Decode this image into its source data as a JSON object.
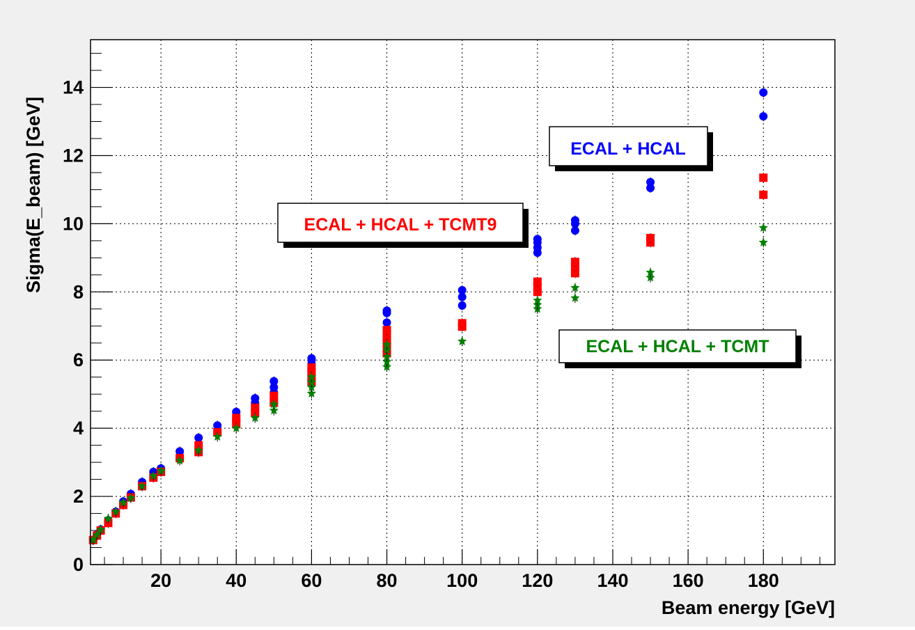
{
  "chart_data": {
    "type": "scatter",
    "title": "",
    "xlabel": "Beam energy [GeV]",
    "ylabel": "Sigma(E_beam) [GeV]",
    "xlim": [
      1.3,
      199
    ],
    "ylim": [
      0,
      15.4
    ],
    "grid": true,
    "x_ticks": [
      20,
      40,
      60,
      80,
      100,
      120,
      140,
      160,
      180
    ],
    "x_tick_labels": [
      "20",
      "40",
      "60",
      "80",
      "100",
      "120",
      "140",
      "160",
      "180"
    ],
    "y_ticks": [
      0,
      2,
      4,
      6,
      8,
      10,
      12,
      14
    ],
    "y_tick_labels": [
      "0",
      "2",
      "4",
      "6",
      "8",
      "10",
      "12",
      "14"
    ],
    "annotations": [
      {
        "text": "ECAL + HCAL",
        "color": "#0000ff"
      },
      {
        "text": "ECAL + HCAL + TCMT9",
        "color": "#ff0000"
      },
      {
        "text": "ECAL + HCAL + TCMT",
        "color": "#008000"
      }
    ],
    "series": [
      {
        "color": "#0000ff",
        "marker": "circle",
        "points": [
          [
            2,
            0.72
          ],
          [
            3,
            0.88
          ],
          [
            4,
            1.03
          ],
          [
            6,
            1.3
          ],
          [
            8,
            1.55
          ],
          [
            10,
            1.85
          ],
          [
            12,
            2.07
          ],
          [
            15,
            2.42
          ],
          [
            18,
            2.72
          ],
          [
            20,
            2.82
          ],
          [
            25,
            3.32
          ],
          [
            30,
            3.72
          ],
          [
            35,
            4.08
          ],
          [
            40,
            4.3
          ],
          [
            40,
            4.48
          ],
          [
            45,
            4.75
          ],
          [
            45,
            4.88
          ],
          [
            50,
            5.05
          ],
          [
            50,
            5.2
          ],
          [
            50,
            5.38
          ],
          [
            60,
            5.75
          ],
          [
            60,
            5.88
          ],
          [
            60,
            6.0
          ],
          [
            60,
            6.05
          ],
          [
            80,
            6.6
          ],
          [
            80,
            6.85
          ],
          [
            80,
            7.1
          ],
          [
            80,
            7.38
          ],
          [
            80,
            7.45
          ],
          [
            100,
            7.6
          ],
          [
            100,
            7.85
          ],
          [
            100,
            8.05
          ],
          [
            120,
            9.15
          ],
          [
            120,
            9.3
          ],
          [
            120,
            9.45
          ],
          [
            120,
            9.55
          ],
          [
            130,
            9.8
          ],
          [
            130,
            10.0
          ],
          [
            130,
            10.1
          ],
          [
            150,
            11.05
          ],
          [
            150,
            11.22
          ],
          [
            180,
            13.15
          ],
          [
            180,
            13.85
          ]
        ]
      },
      {
        "color": "#ff0000",
        "marker": "square",
        "points": [
          [
            2,
            0.72
          ],
          [
            3,
            0.85
          ],
          [
            4,
            1.0
          ],
          [
            6,
            1.22
          ],
          [
            8,
            1.5
          ],
          [
            10,
            1.75
          ],
          [
            12,
            1.97
          ],
          [
            15,
            2.3
          ],
          [
            18,
            2.55
          ],
          [
            20,
            2.72
          ],
          [
            25,
            3.12
          ],
          [
            30,
            3.3
          ],
          [
            30,
            3.5
          ],
          [
            35,
            3.88
          ],
          [
            40,
            4.12
          ],
          [
            40,
            4.3
          ],
          [
            45,
            4.45
          ],
          [
            45,
            4.6
          ],
          [
            50,
            4.75
          ],
          [
            50,
            4.95
          ],
          [
            60,
            5.35
          ],
          [
            60,
            5.5
          ],
          [
            60,
            5.65
          ],
          [
            60,
            5.78
          ],
          [
            80,
            6.2
          ],
          [
            80,
            6.4
          ],
          [
            80,
            6.55
          ],
          [
            80,
            6.75
          ],
          [
            80,
            6.88
          ],
          [
            100,
            6.98
          ],
          [
            100,
            7.08
          ],
          [
            120,
            8.0
          ],
          [
            120,
            8.15
          ],
          [
            120,
            8.3
          ],
          [
            130,
            8.55
          ],
          [
            130,
            8.75
          ],
          [
            130,
            8.88
          ],
          [
            150,
            9.45
          ],
          [
            150,
            9.58
          ],
          [
            180,
            10.85
          ],
          [
            180,
            11.35
          ]
        ]
      },
      {
        "color": "#008000",
        "marker": "star",
        "points": [
          [
            2,
            0.72
          ],
          [
            3,
            0.87
          ],
          [
            4,
            1.02
          ],
          [
            6,
            1.35
          ],
          [
            8,
            1.55
          ],
          [
            10,
            1.82
          ],
          [
            12,
            1.95
          ],
          [
            15,
            2.3
          ],
          [
            18,
            2.6
          ],
          [
            20,
            2.75
          ],
          [
            25,
            3.05
          ],
          [
            30,
            3.35
          ],
          [
            35,
            3.75
          ],
          [
            40,
            4.0
          ],
          [
            45,
            4.3
          ],
          [
            50,
            4.52
          ],
          [
            50,
            4.7
          ],
          [
            60,
            5.02
          ],
          [
            60,
            5.2
          ],
          [
            60,
            5.35
          ],
          [
            60,
            5.5
          ],
          [
            80,
            5.8
          ],
          [
            80,
            5.95
          ],
          [
            80,
            6.1
          ],
          [
            80,
            6.3
          ],
          [
            80,
            6.45
          ],
          [
            100,
            6.55
          ],
          [
            120,
            7.5
          ],
          [
            120,
            7.62
          ],
          [
            120,
            7.75
          ],
          [
            130,
            7.82
          ],
          [
            130,
            8.12
          ],
          [
            150,
            8.42
          ],
          [
            150,
            8.57
          ],
          [
            180,
            9.45
          ],
          [
            180,
            9.88
          ]
        ]
      }
    ]
  }
}
